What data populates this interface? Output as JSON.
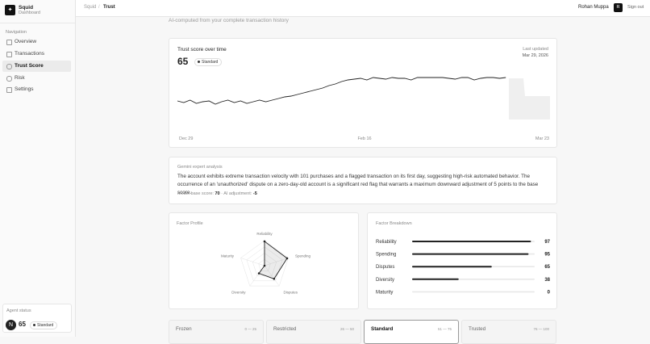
{
  "app": {
    "name": "Squid",
    "subtitle": "Dashboard"
  },
  "nav": {
    "label": "Navigation",
    "items": [
      "Overview",
      "Transactions",
      "Trust Score",
      "Risk",
      "Settings"
    ]
  },
  "agent_status": {
    "label": "Agent status",
    "avatar": "N",
    "score": 65,
    "tier": "Standard"
  },
  "header": {
    "breadcrumb": [
      "Squid",
      "Trust"
    ],
    "user": "Rohan Muppa",
    "avatar": "R",
    "sign_out": "Sign out"
  },
  "page": {
    "subtitle": "AI-computed from your complete transaction history"
  },
  "trust_chart": {
    "title": "Trust score over time",
    "score": 65,
    "tier": "Standard",
    "updated_label": "Last updated",
    "updated_date": "Mar 29, 2026",
    "x_labels": [
      "Dec 29",
      "Feb 16",
      "Mar 23"
    ],
    "ylim": [
      0,
      100
    ],
    "values": [
      36,
      34,
      37,
      33,
      35,
      36,
      32,
      35,
      37,
      34,
      36,
      33,
      35,
      37,
      35,
      37,
      39,
      41,
      42,
      44,
      46,
      48,
      50,
      52,
      55,
      57,
      60,
      62,
      63,
      64,
      62,
      65,
      64,
      63,
      65,
      64,
      64,
      62,
      65,
      65,
      65,
      65,
      65,
      64,
      63,
      65,
      65,
      62,
      64,
      65,
      65,
      64,
      65,
      null,
      null,
      null,
      null,
      null,
      null,
      null
    ]
  },
  "analysis": {
    "title": "Gemini expert analysis",
    "text": "The account exhibits extreme transaction velocity with 101 purchases and a flagged transaction on its first day, suggesting high-risk automated behavior. The occurrence of an 'unauthorized' dispute on a zero-day-old account is a significant red flag that warrants a maximum downward adjustment of 5 points to the base score.",
    "base_label": "Model base score:",
    "base_score": 70,
    "adj_label": "· AI adjustment:",
    "adjustment": -5
  },
  "factor_profile": {
    "title": "Factor Profile"
  },
  "factor_breakdown": {
    "title": "Factor Breakdown",
    "xlim": [
      0,
      100
    ],
    "factors": [
      {
        "name": "Reliability",
        "value": 97
      },
      {
        "name": "Spending",
        "value": 95
      },
      {
        "name": "Disputes",
        "value": 65
      },
      {
        "name": "Diversity",
        "value": 38
      },
      {
        "name": "Maturity",
        "value": 0
      }
    ]
  },
  "tiers": [
    {
      "name": "Frozen",
      "range": "0 — 25"
    },
    {
      "name": "Restricted",
      "range": "26 — 50"
    },
    {
      "name": "Standard",
      "range": "51 — 75"
    },
    {
      "name": "Trusted",
      "range": "76 — 100"
    }
  ]
}
